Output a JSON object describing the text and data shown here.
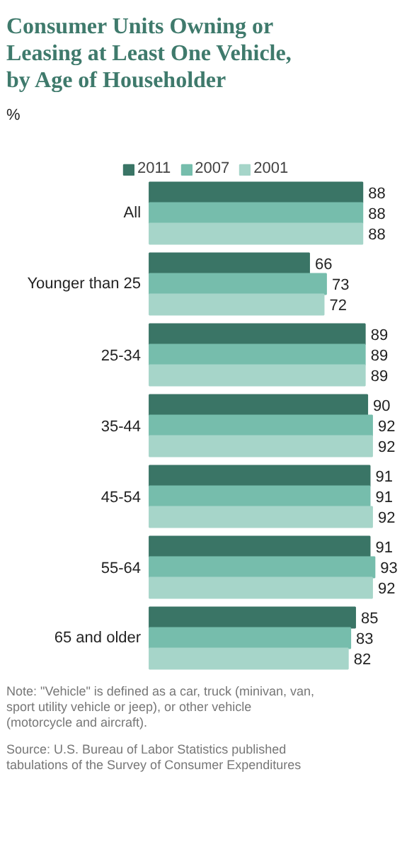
{
  "chart_data": {
    "type": "bar",
    "orientation": "horizontal",
    "title": "Consumer Units Owning or Leasing at Least One Vehicle, by Age of Householder",
    "subtitle": "%",
    "categories": [
      "All",
      "Younger than 25",
      "25-34",
      "35-44",
      "45-54",
      "55-64",
      "65 and older"
    ],
    "series": [
      {
        "name": "2011",
        "color": "#3a7566",
        "values": [
          88,
          66,
          89,
          90,
          91,
          91,
          85
        ]
      },
      {
        "name": "2007",
        "color": "#76bdac",
        "values": [
          88,
          73,
          89,
          92,
          91,
          93,
          83
        ]
      },
      {
        "name": "2001",
        "color": "#a6d5c9",
        "values": [
          88,
          72,
          89,
          92,
          92,
          92,
          82
        ]
      }
    ],
    "data_labels": true,
    "grid": false,
    "legend": "top",
    "annotations": [
      "Note: \"Vehicle\" is defined as a car, truck (minivan, van, sport utility vehicle or jeep), or other vehicle (motorcycle and aircraft).",
      "Source: U.S. Bureau of Labor Statistics published tabulations of the Survey of Consumer Expenditures"
    ]
  }
}
